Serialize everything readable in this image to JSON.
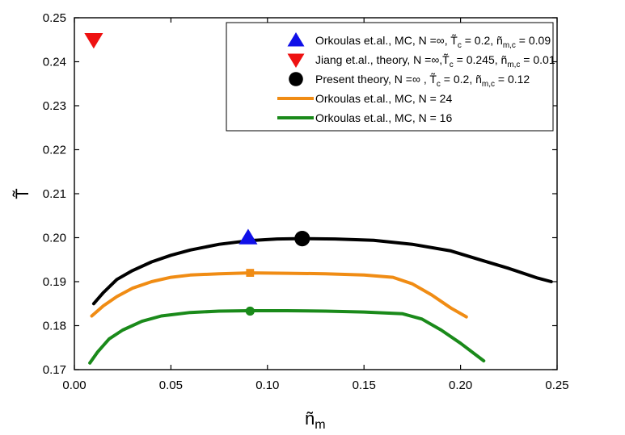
{
  "chart_data": {
    "type": "scatter",
    "title": "",
    "xlabel": "ñ",
    "xlabel_sub": "m",
    "ylabel": "T̃",
    "xlim": [
      0.0,
      0.25
    ],
    "ylim": [
      0.17,
      0.25
    ],
    "x_ticks": [
      0.0,
      0.05,
      0.1,
      0.15,
      0.2,
      0.25
    ],
    "y_ticks": [
      0.17,
      0.18,
      0.19,
      0.2,
      0.21,
      0.22,
      0.23,
      0.24,
      0.25
    ],
    "x_tick_labels": [
      "0.00",
      "0.05",
      "0.10",
      "0.15",
      "0.20",
      "0.25"
    ],
    "y_tick_labels": [
      "0.17",
      "0.18",
      "0.19",
      "0.20",
      "0.21",
      "0.22",
      "0.23",
      "0.24",
      "0.25"
    ],
    "grid": false,
    "legend_position": "top-right",
    "series": [
      {
        "kind": "point",
        "marker": "triangle-up",
        "color": "#1010e8",
        "legend": {
          "pre": "Orkoulas et.al., MC, N =∞, T̃",
          "sub1": "c",
          "mid": " = 0.2, ñ",
          "sub2": "m,c",
          "post": " = 0.09"
        },
        "points": [
          [
            0.09,
            0.2
          ]
        ]
      },
      {
        "kind": "point",
        "marker": "triangle-down",
        "color": "#ee1111",
        "legend": {
          "pre": "Jiang et.al., theory, N =∞,T̃",
          "sub1": "c",
          "mid": " = 0.245, ñ",
          "sub2": "m,c",
          "post": " = 0.01"
        },
        "points": [
          [
            0.01,
            0.245
          ]
        ]
      },
      {
        "kind": "point",
        "marker": "circle",
        "color": "#000000",
        "legend": {
          "pre": "Present theory, N =∞ , T̃",
          "sub1": "c",
          "mid": " = 0.2, ñ",
          "sub2": "m,c",
          "post": " = 0.12"
        },
        "points": [
          [
            0.118,
            0.1998
          ]
        ]
      },
      {
        "kind": "line",
        "color": "#f08c14",
        "legend": {
          "pre": "Orkoulas et.al., MC, N = 24",
          "sub1": "",
          "mid": "",
          "sub2": "",
          "post": ""
        },
        "marker": "square",
        "marker_point": [
          0.091,
          0.192
        ],
        "points": [
          [
            0.009,
            0.1822
          ],
          [
            0.015,
            0.1845
          ],
          [
            0.022,
            0.1866
          ],
          [
            0.03,
            0.1885
          ],
          [
            0.04,
            0.19
          ],
          [
            0.05,
            0.191
          ],
          [
            0.06,
            0.1915
          ],
          [
            0.075,
            0.1918
          ],
          [
            0.091,
            0.192
          ],
          [
            0.11,
            0.1919
          ],
          [
            0.13,
            0.1918
          ],
          [
            0.15,
            0.1915
          ],
          [
            0.165,
            0.191
          ],
          [
            0.175,
            0.1895
          ],
          [
            0.185,
            0.187
          ],
          [
            0.195,
            0.184
          ],
          [
            0.203,
            0.182
          ]
        ]
      },
      {
        "kind": "line",
        "color": "#1a8a1a",
        "legend": {
          "pre": "Orkoulas et.al., MC, N = 16",
          "sub1": "",
          "mid": "",
          "sub2": "",
          "post": ""
        },
        "marker": "circle",
        "marker_point": [
          0.091,
          0.1833
        ],
        "points": [
          [
            0.008,
            0.1715
          ],
          [
            0.012,
            0.174
          ],
          [
            0.018,
            0.177
          ],
          [
            0.025,
            0.179
          ],
          [
            0.035,
            0.181
          ],
          [
            0.045,
            0.1822
          ],
          [
            0.06,
            0.183
          ],
          [
            0.075,
            0.1833
          ],
          [
            0.091,
            0.1834
          ],
          [
            0.11,
            0.1834
          ],
          [
            0.13,
            0.1833
          ],
          [
            0.15,
            0.1831
          ],
          [
            0.17,
            0.1827
          ],
          [
            0.18,
            0.1815
          ],
          [
            0.19,
            0.179
          ],
          [
            0.2,
            0.176
          ],
          [
            0.212,
            0.172
          ]
        ]
      },
      {
        "kind": "line",
        "color": "#000000",
        "legend": null,
        "points": [
          [
            0.01,
            0.185
          ],
          [
            0.015,
            0.1875
          ],
          [
            0.022,
            0.1905
          ],
          [
            0.03,
            0.1925
          ],
          [
            0.04,
            0.1945
          ],
          [
            0.05,
            0.196
          ],
          [
            0.06,
            0.1972
          ],
          [
            0.075,
            0.1985
          ],
          [
            0.09,
            0.1993
          ],
          [
            0.105,
            0.1997
          ],
          [
            0.118,
            0.1998
          ],
          [
            0.135,
            0.1997
          ],
          [
            0.155,
            0.1994
          ],
          [
            0.175,
            0.1985
          ],
          [
            0.195,
            0.197
          ],
          [
            0.21,
            0.195
          ],
          [
            0.225,
            0.193
          ],
          [
            0.24,
            0.1908
          ],
          [
            0.247,
            0.19
          ]
        ]
      }
    ]
  }
}
